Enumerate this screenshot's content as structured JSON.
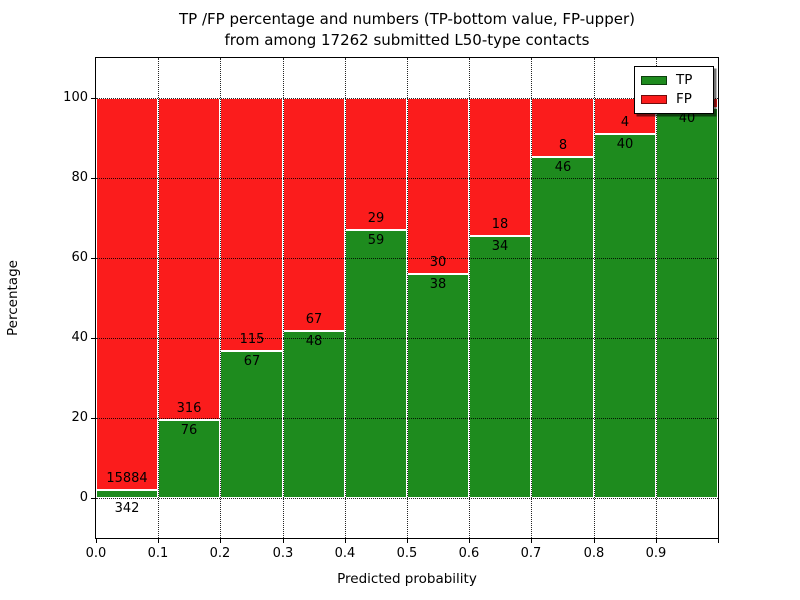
{
  "chart_data": {
    "type": "bar",
    "stacked": true,
    "normalized_to_percent": true,
    "title_lines": [
      "TP /FP percentage and numbers (TP-bottom value, FP-upper)",
      "from among 17262 submitted L50-type contacts"
    ],
    "total_contacts": 17262,
    "xlabel": "Predicted probability",
    "ylabel": "Percentage",
    "bin_start": 0.0,
    "bin_width": 0.1,
    "categories": [
      "0.0-0.1",
      "0.1-0.2",
      "0.2-0.3",
      "0.3-0.4",
      "0.4-0.5",
      "0.5-0.6",
      "0.6-0.7",
      "0.7-0.8",
      "0.8-0.9",
      "0.9-1.0"
    ],
    "series": [
      {
        "name": "TP",
        "color": "#1e8b1e",
        "counts": [
          342,
          76,
          67,
          48,
          59,
          38,
          34,
          46,
          40,
          40
        ]
      },
      {
        "name": "FP",
        "color": "#fb1c1c",
        "counts": [
          15884,
          316,
          115,
          67,
          29,
          30,
          18,
          8,
          4,
          1
        ]
      }
    ],
    "tp_percent": [
      2.11,
      19.39,
      36.81,
      41.74,
      67.05,
      55.88,
      65.38,
      85.19,
      90.91,
      97.56
    ],
    "bar_labels": [
      {
        "tp": "342",
        "fp": "15884",
        "tp_below_baseline": true
      },
      {
        "tp": "76",
        "fp": "316"
      },
      {
        "tp": "67",
        "fp": "115"
      },
      {
        "tp": "48",
        "fp": "67"
      },
      {
        "tp": "59",
        "fp": "29"
      },
      {
        "tp": "38",
        "fp": "30"
      },
      {
        "tp": "34",
        "fp": "18"
      },
      {
        "tp": "46",
        "fp": "8"
      },
      {
        "tp": "40",
        "fp": "4"
      },
      {
        "tp": "40",
        "fp": null
      }
    ],
    "ylim": [
      -10,
      110
    ],
    "yticks": [
      0,
      20,
      40,
      60,
      80,
      100
    ],
    "ytick_labels": [
      "0",
      "20",
      "40",
      "60",
      "80",
      "100"
    ],
    "xtick_labels": [
      "0.0",
      "0.1",
      "0.2",
      "0.3",
      "0.4",
      "0.5",
      "0.6",
      "0.7",
      "0.8",
      "0.9"
    ],
    "grid": "dotted",
    "legend": {
      "position": "upper-right",
      "entries": [
        {
          "label": "TP",
          "color": "#1e8b1e"
        },
        {
          "label": "FP",
          "color": "#fb1c1c"
        }
      ]
    }
  }
}
